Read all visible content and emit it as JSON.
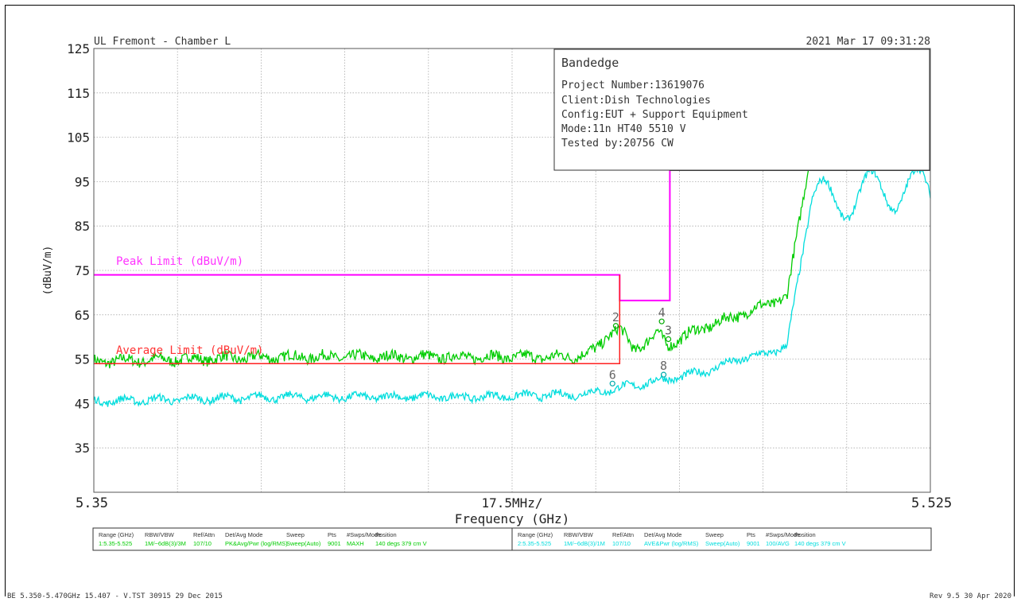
{
  "header": {
    "site": "UL Fremont - Chamber L",
    "datetime": "2021 Mar 17   09:31:28"
  },
  "info_box": {
    "title": "Bandedge",
    "lines": [
      "Project Number:13619076",
      "Client:Dish Technologies",
      "Config:EUT + Support Equipment",
      "Mode:11n HT40 5510 V",
      "Tested by:20756 CW"
    ]
  },
  "chart_data": {
    "type": "line",
    "xlabel": "Frequency (GHz)",
    "ylabel": "(dBuV/m)",
    "x_center_label": "17.5MHz/",
    "x_start_label": "5.35",
    "x_end_label": "5.525",
    "xlim": [
      5.35,
      5.525
    ],
    "ylim": [
      25,
      125
    ],
    "yticks": [
      125,
      115,
      105,
      95,
      85,
      75,
      65,
      55,
      45,
      35
    ],
    "grid": true,
    "limits": [
      {
        "name": "Peak Limit (dBuV/m)",
        "color": "#ff00ff",
        "x": [
          5.35,
          5.46,
          5.46,
          5.4705,
          5.4705,
          5.4705
        ],
        "y": [
          74,
          74,
          68.2,
          68.2,
          97.5,
          97.5
        ]
      },
      {
        "name": "Average Limit (dBuV/m)",
        "color": "#ff2020",
        "x": [
          5.35,
          5.46,
          5.46
        ],
        "y": [
          54,
          54,
          74
        ]
      }
    ],
    "series": [
      {
        "color": "#00cc00",
        "x": [
          5.35,
          5.37,
          5.39,
          5.41,
          5.43,
          5.45,
          5.455,
          5.458,
          5.46,
          5.463,
          5.468,
          5.47,
          5.475,
          5.48,
          5.485,
          5.49,
          5.495,
          5.5,
          5.505,
          5.51,
          5.515,
          5.52,
          5.525
        ],
        "y": [
          54.5,
          55,
          55.5,
          55.5,
          55.5,
          55.5,
          57,
          61,
          62,
          57,
          61,
          58,
          61,
          63,
          65,
          67,
          69,
          102,
          102,
          103,
          103,
          104,
          102
        ]
      },
      {
        "color": "#00dddd",
        "x": [
          5.35,
          5.37,
          5.39,
          5.41,
          5.43,
          5.45,
          5.455,
          5.46,
          5.465,
          5.47,
          5.475,
          5.48,
          5.485,
          5.49,
          5.495,
          5.5,
          5.505,
          5.51,
          5.515,
          5.52,
          5.525
        ],
        "y": [
          45.5,
          46,
          46.5,
          46.5,
          46.5,
          47,
          47.5,
          48.5,
          49.5,
          50.5,
          51.5,
          53,
          55,
          56,
          58,
          90,
          91,
          92,
          93,
          94,
          92
        ]
      }
    ],
    "markers": [
      {
        "label": "2",
        "x": 5.4592,
        "y": 62.5,
        "color": "#00aa00"
      },
      {
        "label": "4",
        "x": 5.4688,
        "y": 63.5,
        "color": "#00aa00"
      },
      {
        "label": "3",
        "x": 5.4702,
        "y": 59.5,
        "color": "#00aa00"
      },
      {
        "label": "6",
        "x": 5.4585,
        "y": 49.5,
        "color": "#00aaaa"
      },
      {
        "label": "8",
        "x": 5.4692,
        "y": 51.5,
        "color": "#00aaaa"
      }
    ]
  },
  "table": {
    "headers": [
      "Range (GHz)",
      "RBW/VBW",
      "Ref/Attn",
      "Det/Avg Mode",
      "Sweep",
      "Pts",
      "#Swps/Mode",
      "Position"
    ],
    "rows": [
      {
        "color": "#00cc00",
        "cells": [
          "1:5.35-5.525",
          "1M/~6dB(3)/3M",
          "107/10",
          "PK&Avg/Pwr (log/RMS)",
          "Sweep(Auto)",
          "9001",
          "MAXH",
          "140 degs 379 cm V"
        ]
      },
      {
        "color": "#00dddd",
        "cells": [
          "2:5.35-5.525",
          "1M/~6dB(3)/1M",
          "107/10",
          "AVE&Pwr (log/RMS)",
          "Sweep(Auto)",
          "9001",
          "100/AVG",
          "140 degs 379 cm V"
        ]
      }
    ]
  },
  "footer": {
    "left": "BE 5.350-5.470GHz 15.407 - V.TST 30915 29 Dec 2015",
    "right": "Rev 9.5 30 Apr 2020"
  }
}
